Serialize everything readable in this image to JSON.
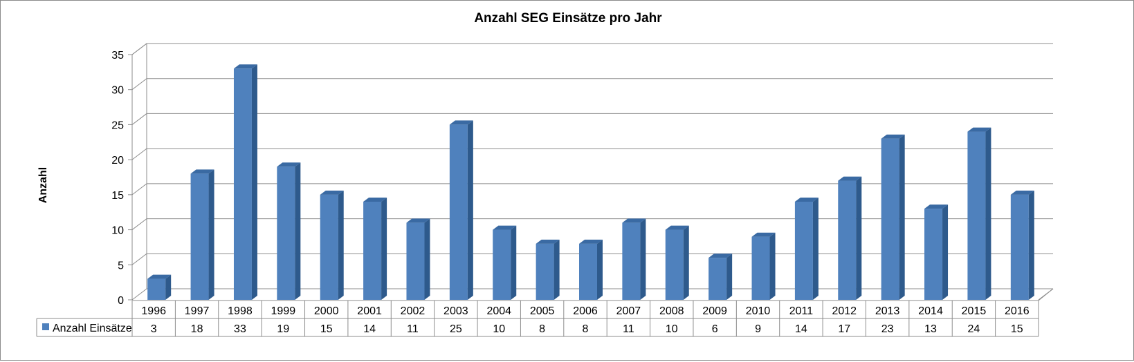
{
  "chart_data": {
    "type": "bar",
    "title": "Anzahl SEG Einsätze pro Jahr",
    "xlabel": "",
    "ylabel": "Anzahl",
    "ylim": [
      0,
      35
    ],
    "yticks": [
      0,
      5,
      10,
      15,
      20,
      25,
      30,
      35
    ],
    "grid": true,
    "three_d": true,
    "data_table": true,
    "categories": [
      "1996",
      "1997",
      "1998",
      "1999",
      "2000",
      "2001",
      "2002",
      "2003",
      "2004",
      "2005",
      "2006",
      "2007",
      "2008",
      "2009",
      "2010",
      "2011",
      "2012",
      "2013",
      "2014",
      "2015",
      "2016"
    ],
    "series": [
      {
        "name": "Anzahl Einsätze",
        "color": "#4f81bd",
        "values": [
          3,
          18,
          33,
          19,
          15,
          14,
          11,
          25,
          10,
          8,
          8,
          11,
          10,
          6,
          9,
          14,
          17,
          23,
          13,
          24,
          15
        ]
      }
    ]
  }
}
